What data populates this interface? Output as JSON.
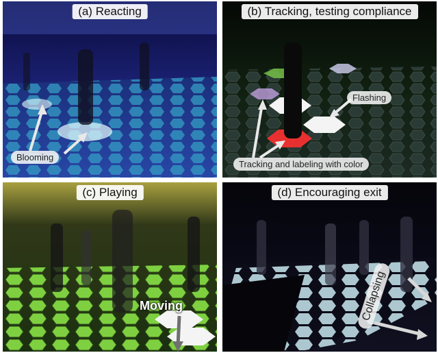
{
  "panels": {
    "a": {
      "caption": "(a) Reacting",
      "labels": {
        "blooming": "Blooming"
      }
    },
    "b": {
      "caption": "(b) Tracking, testing compliance",
      "labels": {
        "flashing": "Flashing",
        "tracking": "Tracking and labeling with color"
      }
    },
    "c": {
      "caption": "(c) Playing",
      "labels": {
        "moving": "Moving"
      }
    },
    "d": {
      "caption": "(d) Encouraging exit",
      "labels": {
        "collapsing": "Collapsing"
      }
    }
  },
  "colors": {
    "panel_a_floor": "#3aa0c8",
    "panel_b_red_tile": "#e83030",
    "panel_c_floor": "#6fcf3a",
    "panel_d_floor": "#c8e8f0",
    "arrow": "#e0e0e0"
  }
}
